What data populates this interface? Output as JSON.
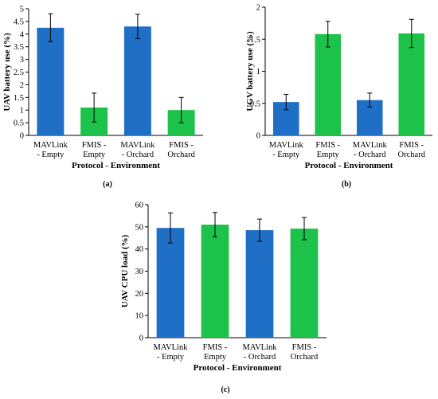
{
  "colors": {
    "mavlink": "#1f6fc6",
    "fmis": "#1cc24a"
  },
  "chart_data": [
    {
      "type": "bar",
      "panel_label": "(a)",
      "ylabel": "UAV battery use (%)",
      "xlabel": "Protocol - Environment",
      "categories": [
        [
          "MAVLink",
          "- Empty"
        ],
        [
          "FMIS -",
          "Empty"
        ],
        [
          "MAVLink",
          "- Orchard"
        ],
        [
          "FMIS -",
          "Orchard"
        ]
      ],
      "values": [
        4.25,
        1.1,
        4.3,
        1.0
      ],
      "errors": [
        0.55,
        0.57,
        0.48,
        0.5
      ],
      "bar_colors": [
        "mavlink",
        "fmis",
        "mavlink",
        "fmis"
      ],
      "ylim": [
        0,
        5
      ],
      "yticks": [
        0,
        0.5,
        1,
        1.5,
        2,
        2.5,
        3,
        3.5,
        4,
        4.5,
        5
      ],
      "ytick_labels": [
        "0",
        "0.5",
        "1",
        "1.5",
        "2",
        "2.5",
        "3",
        "3.5",
        "4",
        "4.5",
        "5"
      ],
      "grid": false
    },
    {
      "type": "bar",
      "panel_label": "(b)",
      "ylabel": "UGV battery use (%)",
      "xlabel": "Protocol - Environment",
      "categories": [
        [
          "MAVLink",
          "- Empty"
        ],
        [
          "FMIS -",
          "Empty"
        ],
        [
          "MAVLink",
          "- Orchard"
        ],
        [
          "FMIS -",
          "Orchard"
        ]
      ],
      "values": [
        0.52,
        1.58,
        0.55,
        1.59
      ],
      "errors": [
        0.12,
        0.2,
        0.11,
        0.22
      ],
      "bar_colors": [
        "mavlink",
        "fmis",
        "mavlink",
        "fmis"
      ],
      "ylim": [
        0,
        2
      ],
      "yticks": [
        0,
        0.5,
        1,
        1.5,
        2
      ],
      "ytick_labels": [
        "0",
        "0.5",
        "1",
        "1.5",
        "2"
      ],
      "grid": false
    },
    {
      "type": "bar",
      "panel_label": "(c)",
      "ylabel": "UAV CPU load (%)",
      "xlabel": "Protocol - Environment",
      "categories": [
        [
          "MAVLink",
          "- Empty"
        ],
        [
          "FMIS -",
          "Empty"
        ],
        [
          "MAVLink",
          "- Orchard"
        ],
        [
          "FMIS -",
          "Orchard"
        ]
      ],
      "values": [
        49.5,
        51.0,
        48.5,
        49.2
      ],
      "errors": [
        6.8,
        5.5,
        5.0,
        5.0
      ],
      "bar_colors": [
        "mavlink",
        "fmis",
        "mavlink",
        "fmis"
      ],
      "ylim": [
        0,
        60
      ],
      "yticks": [
        0,
        10,
        20,
        30,
        40,
        50,
        60
      ],
      "ytick_labels": [
        "0",
        "10",
        "20",
        "30",
        "40",
        "50",
        "60"
      ],
      "grid": false
    }
  ]
}
